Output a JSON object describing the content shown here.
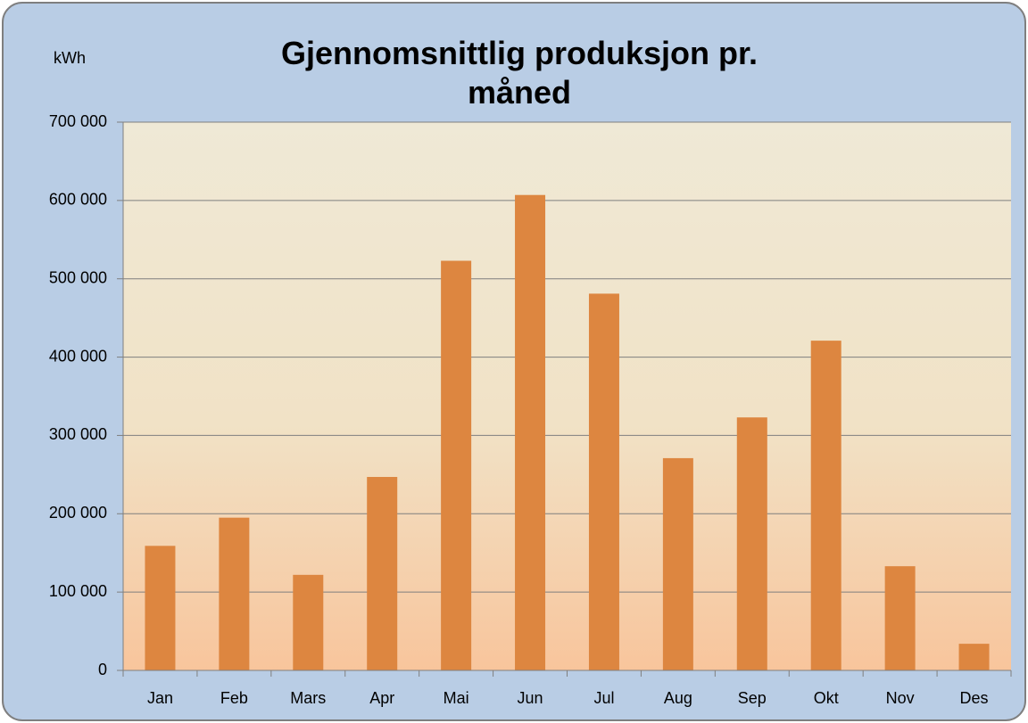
{
  "chart_data": {
    "type": "bar",
    "title": "Gjennomsnittlig produksjon pr. måned",
    "ylabel": "kWh",
    "categories": [
      "Jan",
      "Feb",
      "Mars",
      "Apr",
      "Mai",
      "Jun",
      "Jul",
      "Aug",
      "Sep",
      "Okt",
      "Nov",
      "Des"
    ],
    "values": [
      159000,
      195000,
      122000,
      247000,
      523000,
      607000,
      481000,
      271000,
      323000,
      421000,
      133000,
      34000
    ],
    "color": "#dd8640",
    "ylim": [
      0,
      700000
    ],
    "yticks": [
      0,
      {
        "value": 100000,
        "label": "100 000"
      },
      {
        "value": 200000,
        "label": "200 000"
      },
      {
        "value": 300000,
        "label": "300 000"
      },
      {
        "value": 400000,
        "label": "400 000"
      },
      {
        "value": 500000,
        "label": "500 000"
      },
      {
        "value": 600000,
        "label": "600 000"
      },
      {
        "value": 700000,
        "label": "700 000"
      }
    ],
    "grid": true
  }
}
